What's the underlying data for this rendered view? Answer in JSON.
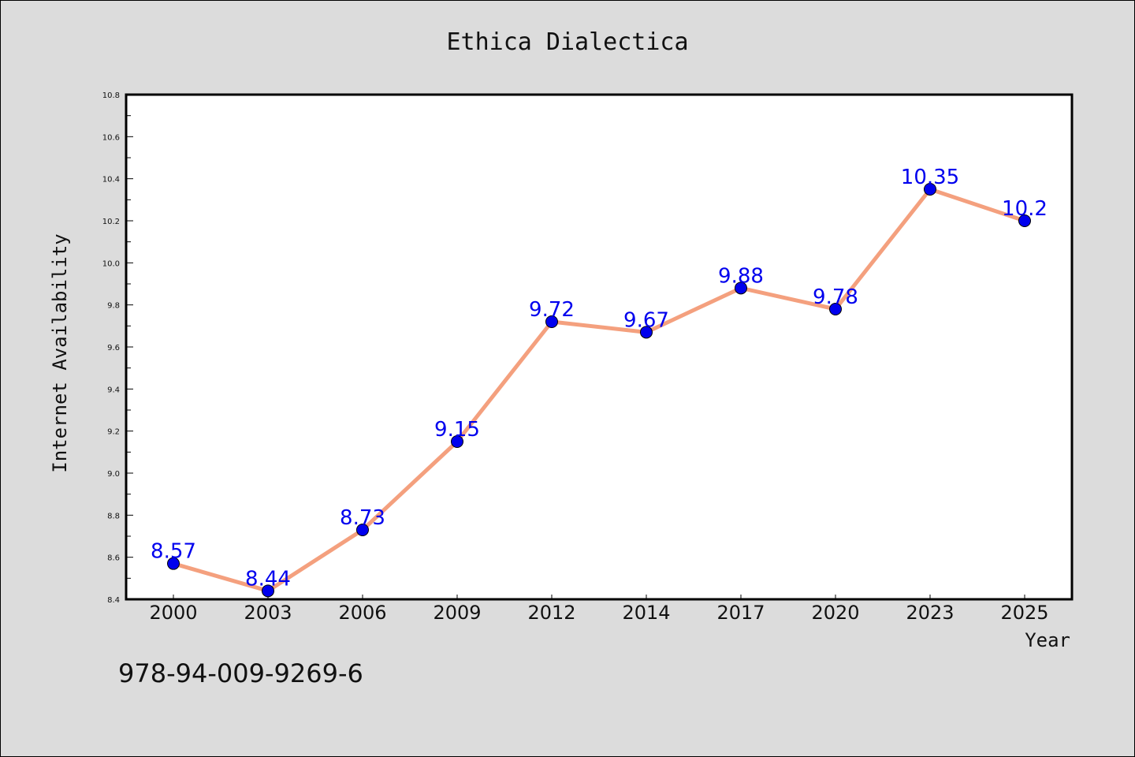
{
  "chart_data": {
    "type": "line",
    "title": "Ethica Dialectica",
    "xlabel": "Year",
    "ylabel": "Internet Availability",
    "categories": [
      "2000",
      "2003",
      "2006",
      "2009",
      "2012",
      "2014",
      "2017",
      "2020",
      "2023",
      "2025"
    ],
    "series": [
      {
        "values": [
          8.57,
          8.44,
          8.73,
          9.15,
          9.72,
          9.67,
          9.88,
          9.78,
          10.35,
          10.2
        ],
        "labels": [
          "8.57",
          "8.44",
          "8.73",
          "9.15",
          "9.72",
          "9.67",
          "9.88",
          "9.78",
          "10.35",
          "10.2"
        ],
        "line_color": "#f4a07e",
        "marker_color": "#0000ee"
      }
    ],
    "ylim": [
      8.4,
      10.8
    ],
    "yticks": [
      "8.4",
      "8.6",
      "8.8",
      "9.0",
      "9.2",
      "9.4",
      "9.6",
      "9.8",
      "10.0",
      "10.2",
      "10.4",
      "10.6",
      "10.8"
    ],
    "grid": false,
    "legend": "none"
  },
  "footer": {
    "isbn": "978-94-009-9269-6"
  }
}
